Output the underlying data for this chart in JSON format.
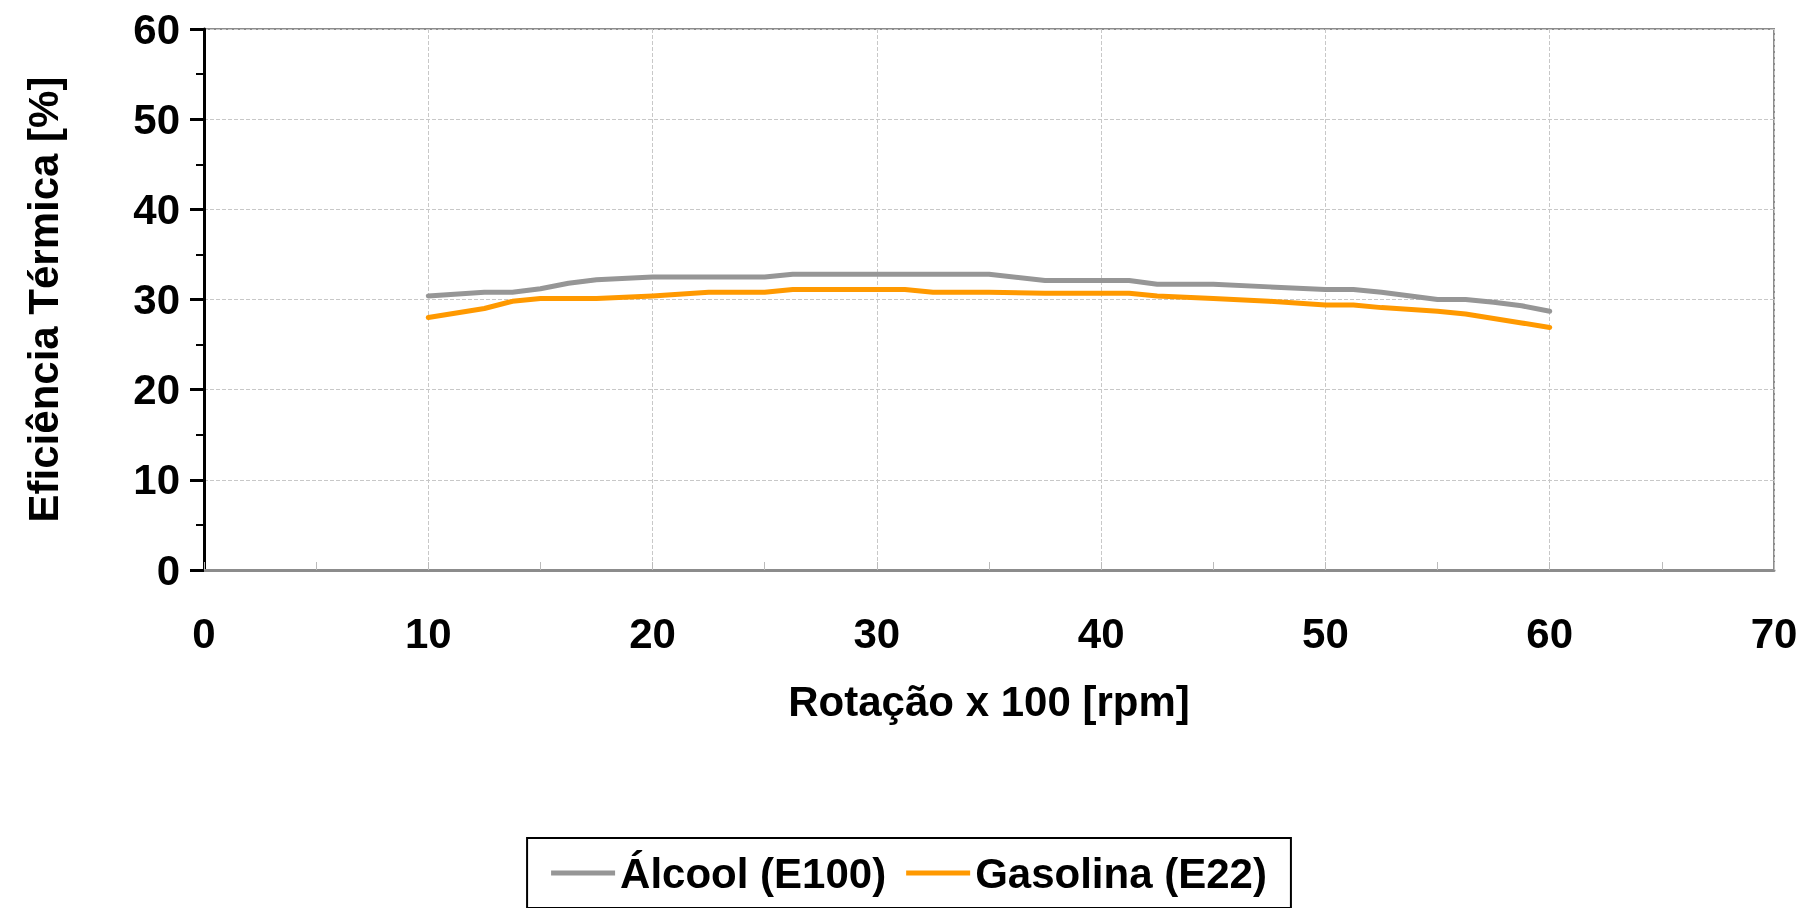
{
  "chart_data": {
    "type": "line",
    "xlabel": "Rotação x 100 [rpm]",
    "ylabel": "Eficiência Térmica [%]",
    "xlim": [
      0,
      70
    ],
    "xticks": [
      0,
      10,
      20,
      30,
      40,
      50,
      60,
      70
    ],
    "ylim": [
      0,
      60
    ],
    "yticks": [
      0,
      10,
      20,
      30,
      40,
      50,
      60
    ],
    "grid": true,
    "legend": "bottom",
    "marker": "none",
    "line_style": "solid",
    "x": [
      10,
      12.5,
      13.75,
      15,
      16.25,
      17.5,
      20,
      22.5,
      25,
      26.25,
      30,
      31.25,
      32.5,
      35,
      37.5,
      41.25,
      42.5,
      45,
      47.5,
      50,
      51.25,
      52.5,
      55,
      56.25,
      57.5,
      58.75,
      60
    ],
    "series": [
      {
        "name": "Álcool (E100)",
        "color": "#969696",
        "values": [
          30.4,
          30.8,
          30.8,
          31.2,
          31.8,
          32.2,
          32.5,
          32.5,
          32.5,
          32.8,
          32.8,
          32.8,
          32.8,
          32.8,
          32.1,
          32.1,
          31.7,
          31.7,
          31.4,
          31.1,
          31.1,
          30.8,
          30.0,
          30.0,
          29.7,
          29.3,
          28.7
        ]
      },
      {
        "name": "Gasolina (E22)",
        "color": "#ff9900",
        "values": [
          28.0,
          29.0,
          29.8,
          30.1,
          30.1,
          30.1,
          30.4,
          30.8,
          30.8,
          31.1,
          31.1,
          31.1,
          30.8,
          30.8,
          30.7,
          30.7,
          30.4,
          30.1,
          29.8,
          29.4,
          29.4,
          29.1,
          28.7,
          28.4,
          27.9,
          27.4,
          26.9
        ]
      }
    ]
  }
}
